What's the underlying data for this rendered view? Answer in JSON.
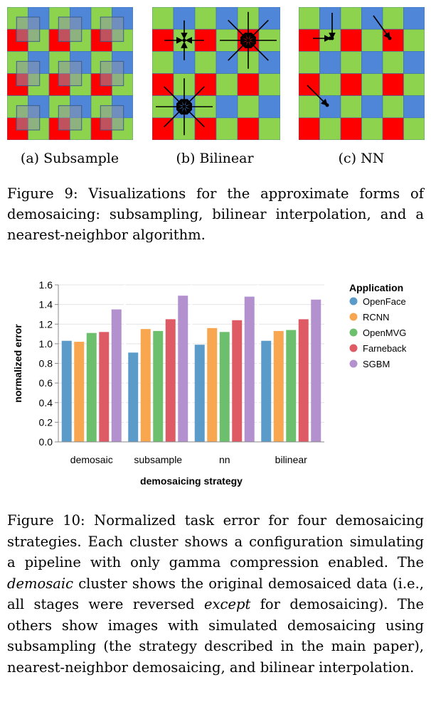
{
  "figure9": {
    "panels": [
      {
        "label": "(a) Subsample",
        "kind": "subsample"
      },
      {
        "label": "(b) Bilinear",
        "kind": "bilinear"
      },
      {
        "label": "(c) NN",
        "kind": "nn"
      }
    ],
    "colors": {
      "green": "#8ed34d",
      "blue": "#4f86d8",
      "red": "#ff0000",
      "gridline": "#3a6fb0"
    },
    "caption": "Figure 9: Visualizations for the approximate forms of demosaicing: subsampling, bilinear interpolation, and a nearest-neighbor algorithm."
  },
  "chart_data": {
    "type": "bar",
    "categories": [
      "demosaic",
      "subsample",
      "nn",
      "bilinear"
    ],
    "series": [
      {
        "name": "OpenFace",
        "color": "#5b9bc9",
        "values": [
          1.03,
          0.91,
          0.99,
          1.03
        ]
      },
      {
        "name": "RCNN",
        "color": "#f8a64f",
        "values": [
          1.02,
          1.15,
          1.16,
          1.13
        ]
      },
      {
        "name": "OpenMVG",
        "color": "#6cbf6c",
        "values": [
          1.11,
          1.13,
          1.12,
          1.14
        ]
      },
      {
        "name": "Farneback",
        "color": "#de5b65",
        "values": [
          1.12,
          1.25,
          1.24,
          1.25
        ]
      },
      {
        "name": "SGBM",
        "color": "#b391cf",
        "values": [
          1.35,
          1.49,
          1.48,
          1.45
        ]
      }
    ],
    "xlabel": "demosaicing strategy",
    "ylabel": "normalized error",
    "ylim": [
      0,
      1.6
    ],
    "yticks": [
      "0.0",
      "0.2",
      "0.4",
      "0.6",
      "0.8",
      "1.0",
      "1.2",
      "1.4",
      "1.6"
    ],
    "legend_title": "Application",
    "legend_position": "right",
    "grid": true
  },
  "figure10": {
    "caption": "Figure 10: Normalized task error for four demosaicing strategies. Each cluster shows a configuration simulating a pipeline with only gamma compression enabled. The <i>demosaic</i> cluster shows the original demosaiced data (i.e., all stages were reversed <i>except</i> for demosaicing). The others show images with simulated demosaicing using subsampling (the strategy described in the main paper), nearest-neighbor demosaicing, and bilinear interpolation."
  }
}
